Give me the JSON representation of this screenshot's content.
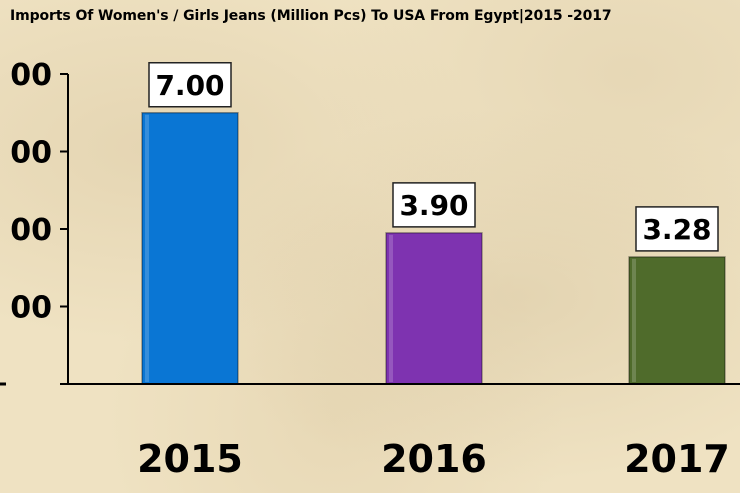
{
  "chart_data": {
    "type": "bar",
    "title": "Imports Of Women's / Girls Jeans (Million Pcs) To USA From Egypt|2015 -2017",
    "categories": [
      "2015",
      "2016",
      "2017"
    ],
    "values": [
      7.0,
      3.9,
      3.28
    ],
    "data_labels": [
      "7.00",
      "3.90",
      "3.28"
    ],
    "ylim": [
      0,
      8
    ],
    "ytick_values": [
      2,
      4,
      6,
      8
    ],
    "ytick_labels": [
      "00",
      "00",
      "00",
      "00"
    ],
    "bar_colors": [
      "#0a76d4",
      "#7e33b0",
      "#4f6b2b"
    ],
    "grid": false,
    "xlabel": "",
    "ylabel": ""
  }
}
